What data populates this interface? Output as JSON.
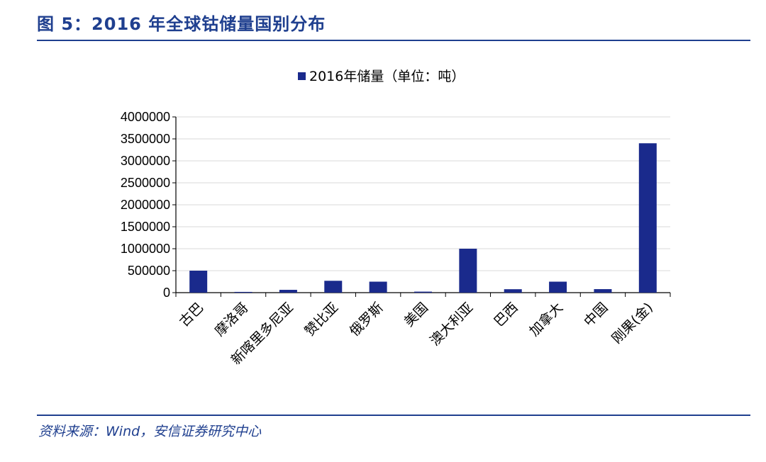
{
  "figure": {
    "title": "图 5：2016 年全球钴储量国别分布",
    "source": "资料来源：Wind，安信证券研究中心"
  },
  "colors": {
    "bar": "#1a2a8c",
    "title": "#1f3f8f",
    "grid": "#d9d9d9"
  },
  "chart_data": {
    "type": "bar",
    "legend_position": "top-center",
    "grid": true,
    "categories": [
      "古巴",
      "摩洛哥",
      "新喀里多尼亚",
      "赞比亚",
      "俄罗斯",
      "美国",
      "澳大利亚",
      "巴西",
      "加拿大",
      "中国",
      "刚果(金)"
    ],
    "series": [
      {
        "name": "2016年储量（单位：吨）",
        "values": [
          500000,
          17000,
          64000,
          270000,
          250000,
          23000,
          1000000,
          78000,
          250000,
          80000,
          3400000
        ]
      }
    ],
    "ylim": [
      0,
      4000000
    ],
    "yticks": [
      "0",
      "500000",
      "1000000",
      "1500000",
      "2000000",
      "2500000",
      "3000000",
      "3500000",
      "4000000"
    ]
  }
}
